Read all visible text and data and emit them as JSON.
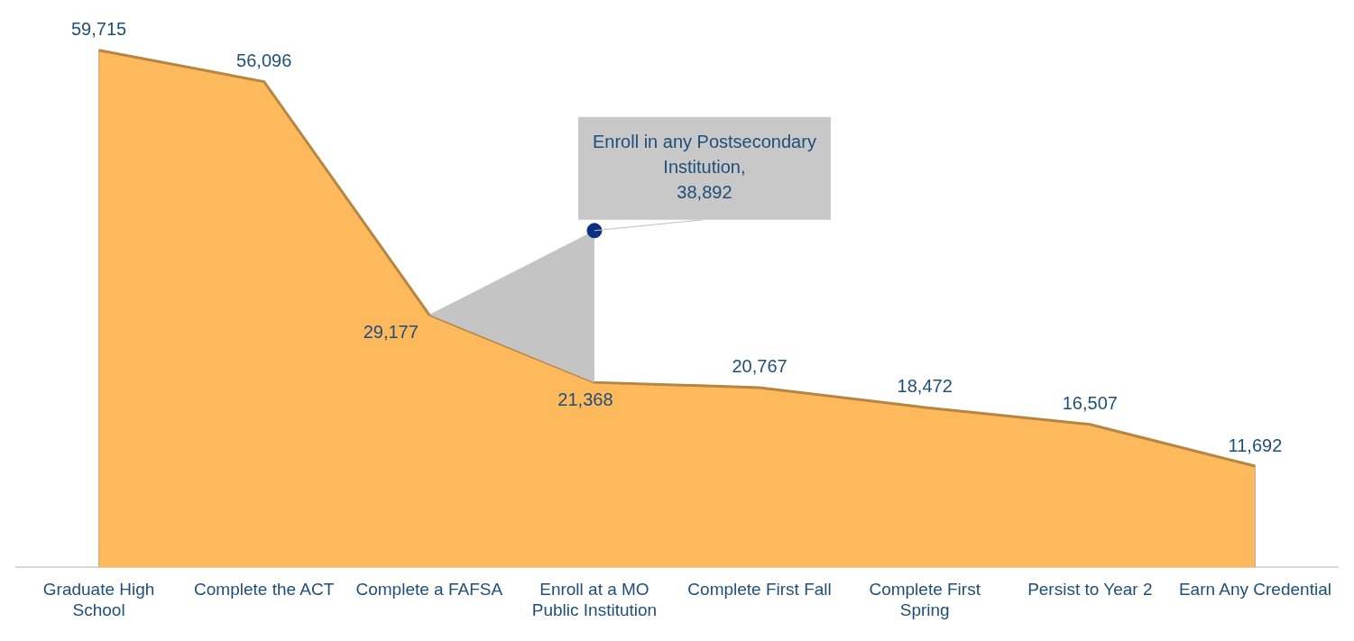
{
  "chart_data": {
    "type": "area",
    "categories": [
      "Graduate High School",
      "Complete the ACT",
      "Complete a FAFSA",
      "Enroll at a MO Public Institution",
      "Complete First Fall",
      "Complete First Spring",
      "Persist to Year 2",
      "Earn Any Credential"
    ],
    "series": [
      {
        "color": "#fdb95b",
        "values": [
          59715,
          56096,
          29177,
          21368,
          20767,
          18472,
          16507,
          11692
        ],
        "value_labels": [
          "59,715",
          "56,096",
          "29,177",
          "21,368",
          "20,767",
          "18,472",
          "16,507",
          "11,692"
        ]
      },
      {
        "color": "#c4c4c4",
        "values": [
          null,
          null,
          29177,
          38892,
          null,
          null,
          null,
          null
        ]
      },
      {
        "type": "scatter",
        "color": "#0d2f7f",
        "marker": "circle",
        "x": [
          "Enroll at a MO Public Institution"
        ],
        "values": [
          38892
        ]
      }
    ],
    "grid": "x",
    "annotations": [
      {
        "text": "Enroll in any Postsecondary Institution, 38,892",
        "x": "Enroll at a MO Public Institution",
        "y": 38892
      }
    ]
  }
}
